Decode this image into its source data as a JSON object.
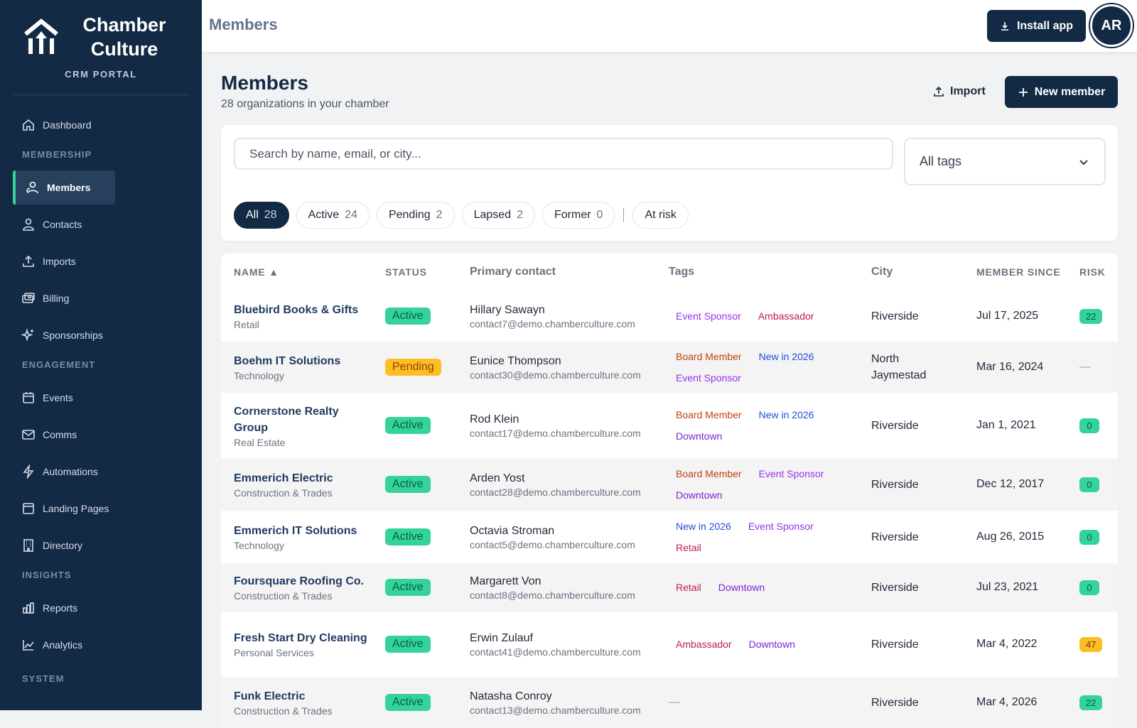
{
  "brand": {
    "name_line1": "Chamber",
    "name_line2": "Culture",
    "subtitle": "CRM PORTAL"
  },
  "nav": {
    "dashboard": "Dashboard",
    "section_membership": "MEMBERSHIP",
    "members": "Members",
    "contacts": "Contacts",
    "imports": "Imports",
    "billing": "Billing",
    "sponsorships": "Sponsorships",
    "section_engagement": "ENGAGEMENT",
    "events": "Events",
    "comms": "Comms",
    "automations": "Automations",
    "landing_pages": "Landing Pages",
    "directory": "Directory",
    "section_insights": "INSIGHTS",
    "reports": "Reports",
    "analytics": "Analytics",
    "section_system": "SYSTEM"
  },
  "topbar": {
    "title": "Members",
    "install_label": "Install app",
    "avatar_initials": "AR"
  },
  "header": {
    "title": "Members",
    "subtitle": "28 organizations in your chamber",
    "import_label": "Import",
    "new_label": "New member"
  },
  "filters": {
    "search_placeholder": "Search by name, email, or city...",
    "tag_select": "All tags",
    "chips": [
      {
        "label": "All",
        "count": "28"
      },
      {
        "label": "Active",
        "count": "24"
      },
      {
        "label": "Pending",
        "count": "2"
      },
      {
        "label": "Lapsed",
        "count": "2"
      },
      {
        "label": "Former",
        "count": "0"
      }
    ],
    "at_risk_label": "At risk"
  },
  "table": {
    "columns": {
      "name": "NAME ▲",
      "status": "STATUS",
      "contact": "Primary contact",
      "tags": "Tags",
      "city": "City",
      "since": "MEMBER SINCE",
      "risk": "RISK"
    },
    "rows": [
      {
        "name": "Bluebird Books & Gifts",
        "category": "Retail",
        "status": "Active",
        "contact": "Hillary Sawayn",
        "email": "contact7@demo.chamberculture.com",
        "tags": [
          "Event Sponsor",
          "Ambassador"
        ],
        "city": "Riverside",
        "since": "Jul 17, 2025",
        "risk": "22"
      },
      {
        "name": "Boehm IT Solutions",
        "category": "Technology",
        "status": "Pending",
        "contact": "Eunice Thompson",
        "email": "contact30@demo.chamberculture.com",
        "tags": [
          "Board Member",
          "New in 2026",
          "Event Sponsor"
        ],
        "city": "North Jaymestad",
        "since": "Mar 16, 2024",
        "risk": "—"
      },
      {
        "name": "Cornerstone Realty Group",
        "category": "Real Estate",
        "status": "Active",
        "contact": "Rod Klein",
        "email": "contact17@demo.chamberculture.com",
        "tags": [
          "Board Member",
          "New in 2026",
          "Downtown"
        ],
        "city": "Riverside",
        "since": "Jan 1, 2021",
        "risk": "0"
      },
      {
        "name": "Emmerich Electric",
        "category": "Construction & Trades",
        "status": "Active",
        "contact": "Arden Yost",
        "email": "contact28@demo.chamberculture.com",
        "tags": [
          "Board Member",
          "Event Sponsor",
          "Downtown"
        ],
        "city": "Riverside",
        "since": "Dec 12, 2017",
        "risk": "0"
      },
      {
        "name": "Emmerich IT Solutions",
        "category": "Technology",
        "status": "Active",
        "contact": "Octavia Stroman",
        "email": "contact5@demo.chamberculture.com",
        "tags": [
          "New in 2026",
          "Event Sponsor",
          "Retail"
        ],
        "city": "Riverside",
        "since": "Aug 26, 2015",
        "risk": "0"
      },
      {
        "name": "Foursquare Roofing Co.",
        "category": "Construction & Trades",
        "status": "Active",
        "contact": "Margarett Von",
        "email": "contact8@demo.chamberculture.com",
        "tags": [
          "Retail",
          "Downtown"
        ],
        "city": "Riverside",
        "since": "Jul 23, 2021",
        "risk": "0"
      },
      {
        "name": "Fresh Start Dry Cleaning",
        "category": "Personal Services",
        "status": "Active",
        "contact": "Erwin Zulauf",
        "email": "contact41@demo.chamberculture.com",
        "tags": [
          "Ambassador",
          "Downtown"
        ],
        "city": "Riverside",
        "since": "Mar 4, 2022",
        "risk": "47"
      },
      {
        "name": "Funk Electric",
        "category": "Construction & Trades",
        "status": "Active",
        "contact": "Natasha Conroy",
        "email": "contact13@demo.chamberculture.com",
        "tags": [],
        "city": "Riverside",
        "since": "Mar 4, 2026",
        "risk": "22"
      }
    ]
  }
}
